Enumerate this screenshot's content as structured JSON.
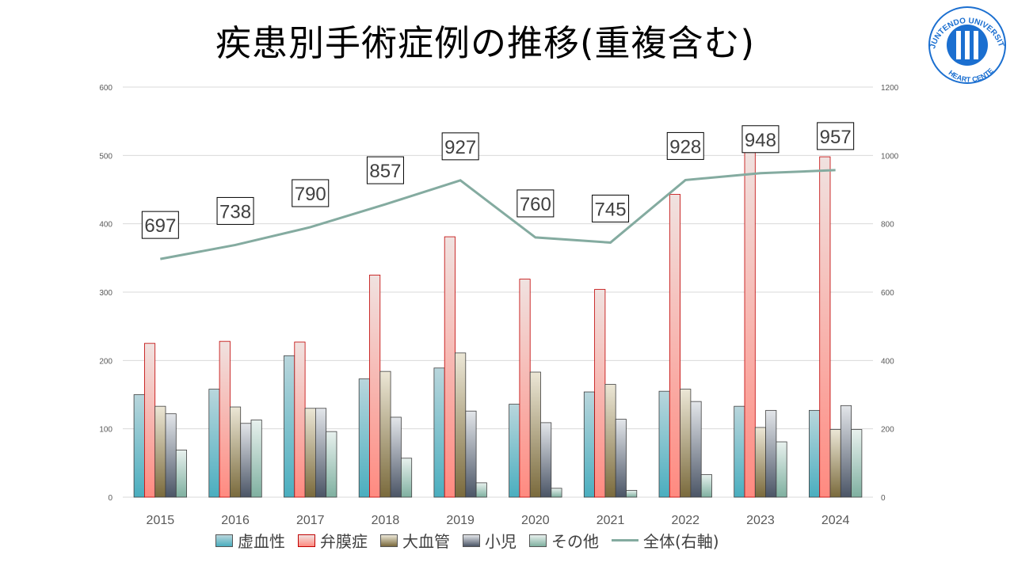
{
  "title": "疾患別手術症例の推移(重複含む)",
  "logo": {
    "text": "JUNTENDO UNIVERSITY HEART CENTER",
    "color": "#1b6fd0"
  },
  "chart_data": {
    "type": "bar",
    "categories": [
      "2015",
      "2016",
      "2017",
      "2018",
      "2019",
      "2020",
      "2021",
      "2022",
      "2023",
      "2024"
    ],
    "series": [
      {
        "name": "虚血性",
        "values": [
          150,
          158,
          207,
          173,
          189,
          136,
          154,
          155,
          133,
          127
        ],
        "color_top": "#b9d6dc",
        "color_bottom": "#4aaebf"
      },
      {
        "name": "弁膜症",
        "values": [
          225,
          228,
          227,
          325,
          381,
          319,
          304,
          443,
          508,
          498
        ],
        "color_top": "#f0e2e0",
        "color_bottom": "#ff8a80",
        "stroke": "#c00000"
      },
      {
        "name": "大血管",
        "values": [
          133,
          132,
          130,
          184,
          211,
          183,
          165,
          158,
          102,
          99
        ],
        "color_top": "#ece7d6",
        "color_bottom": "#7a6a3c"
      },
      {
        "name": "小児",
        "values": [
          122,
          108,
          130,
          117,
          126,
          109,
          114,
          140,
          127,
          134
        ],
        "color_top": "#e3e6ea",
        "color_bottom": "#4b5566"
      },
      {
        "name": "その他",
        "values": [
          69,
          113,
          96,
          57,
          21,
          13,
          10,
          33,
          81,
          99
        ],
        "color_top": "#e8f1ee",
        "color_bottom": "#7fb0a0"
      }
    ],
    "line": {
      "name": "全体(右軸)",
      "values": [
        697,
        738,
        790,
        857,
        927,
        760,
        745,
        928,
        948,
        957
      ],
      "color": "#84aba0"
    },
    "y_left": {
      "min": 0,
      "max": 600,
      "ticks": [
        0,
        100,
        200,
        300,
        400,
        500,
        600
      ]
    },
    "y_right": {
      "min": 0,
      "max": 1200,
      "ticks": [
        0,
        200,
        400,
        600,
        800,
        1000,
        1200
      ]
    },
    "grid": true,
    "legend_position": "bottom"
  }
}
